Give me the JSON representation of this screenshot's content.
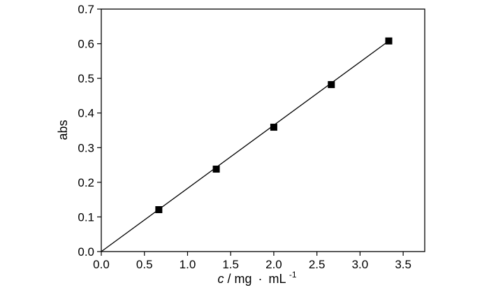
{
  "chart_data": {
    "type": "scatter",
    "title": "",
    "ylabel": "abs",
    "xlabel": {
      "symbol": "c",
      "unit_text": " / mg",
      "dot": "·",
      "unit_tail": "mL",
      "superscript": "-1"
    },
    "xlim": [
      0,
      3.75
    ],
    "ylim": [
      0,
      0.7
    ],
    "xticks": [
      "0.0",
      "0.5",
      "1.0",
      "1.5",
      "2.0",
      "2.5",
      "3.0",
      "3.5"
    ],
    "yticks": [
      "0.0",
      "0.1",
      "0.2",
      "0.3",
      "0.4",
      "0.5",
      "0.6",
      "0.7"
    ],
    "grid": false,
    "legend": "none",
    "series": [
      {
        "marker": "square",
        "x": [
          0.667,
          1.333,
          2.0,
          2.667,
          3.333
        ],
        "y": [
          0.121,
          0.238,
          0.359,
          0.482,
          0.608
        ],
        "color": "#000000"
      }
    ],
    "fit_line": {
      "x": [
        0.0,
        3.333
      ],
      "y": [
        0.0,
        0.608
      ],
      "color": "#000000"
    }
  }
}
